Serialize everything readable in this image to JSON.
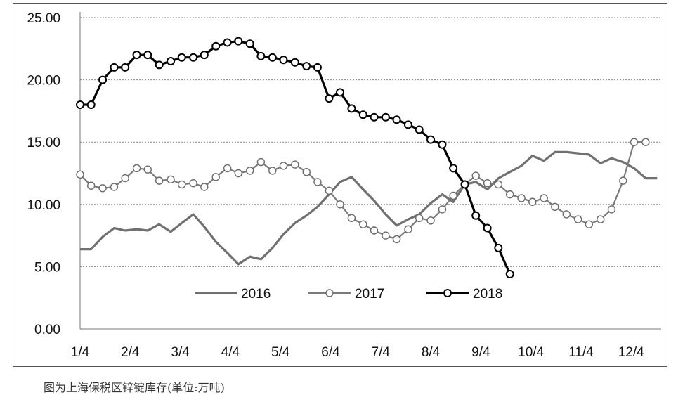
{
  "caption": "图为上海保税区锌锭库存(单位:万吨)",
  "chart_data": {
    "type": "line",
    "title": "",
    "xlabel": "",
    "ylabel": "",
    "ylim": [
      0,
      25
    ],
    "y_ticks": [
      "0.00",
      "5.00",
      "10.00",
      "15.00",
      "20.00",
      "25.00"
    ],
    "x_ticks": [
      "1/4",
      "2/4",
      "3/4",
      "4/4",
      "5/4",
      "6/4",
      "7/4",
      "8/4",
      "9/4",
      "10/4",
      "11/4",
      "12/4"
    ],
    "x_range": [
      0,
      11.6
    ],
    "grid": "horizontal dashed",
    "legend_position": "bottom-center",
    "colors": {
      "2016": "#707070",
      "2017": "#7a7a7a",
      "2018": "#000000"
    },
    "series": [
      {
        "name": "2016",
        "marker": "none",
        "x": [
          0,
          0.22,
          0.45,
          0.68,
          0.9,
          1.13,
          1.35,
          1.58,
          1.81,
          2.03,
          2.26,
          2.48,
          2.71,
          2.94,
          3.16,
          3.39,
          3.61,
          3.84,
          4.06,
          4.29,
          4.52,
          4.74,
          4.97,
          5.19,
          5.42,
          5.65,
          5.87,
          6.1,
          6.32,
          6.55,
          6.77,
          7.0,
          7.23,
          7.45,
          7.68,
          7.9,
          8.13,
          8.35,
          8.58,
          8.81,
          9.03,
          9.26,
          9.48,
          9.71,
          9.94,
          10.16,
          10.39,
          10.61,
          10.84,
          11.06,
          11.29,
          11.52
        ],
        "values": [
          6.4,
          6.4,
          7.4,
          8.1,
          7.9,
          8.0,
          7.9,
          8.4,
          7.8,
          8.5,
          9.2,
          8.2,
          7.0,
          6.1,
          5.2,
          5.8,
          5.6,
          6.5,
          7.6,
          8.5,
          9.1,
          9.8,
          10.8,
          11.8,
          12.2,
          11.2,
          10.3,
          9.2,
          8.3,
          8.8,
          9.2,
          10.1,
          10.8,
          10.2,
          11.6,
          11.8,
          11.2,
          12.1,
          12.6,
          13.1,
          13.9,
          13.5,
          14.2,
          14.2,
          14.1,
          14.0,
          13.3,
          13.7,
          13.4,
          12.9,
          12.1,
          12.1
        ]
      },
      {
        "name": "2017",
        "marker": "hollow-gray",
        "x": [
          0,
          0.22,
          0.45,
          0.68,
          0.9,
          1.13,
          1.35,
          1.58,
          1.81,
          2.03,
          2.26,
          2.48,
          2.71,
          2.94,
          3.16,
          3.39,
          3.61,
          3.84,
          4.06,
          4.29,
          4.52,
          4.74,
          4.97,
          5.19,
          5.42,
          5.65,
          5.87,
          6.1,
          6.32,
          6.55,
          6.77,
          7.0,
          7.23,
          7.45,
          7.68,
          7.9,
          8.13,
          8.35,
          8.58,
          8.81,
          9.03,
          9.26,
          9.48,
          9.71,
          9.94,
          10.16,
          10.39,
          10.61,
          10.84
        ],
        "values": [
          12.4,
          11.5,
          11.3,
          11.4,
          12.1,
          12.9,
          12.8,
          11.9,
          12.0,
          11.6,
          11.7,
          11.4,
          12.2,
          12.9,
          12.5,
          12.7,
          13.4,
          12.7,
          13.1,
          13.2,
          12.6,
          11.8,
          11.1,
          10.0,
          8.9,
          8.4,
          7.9,
          7.5,
          7.2,
          8.0,
          8.9,
          8.7,
          9.6,
          10.7,
          11.6,
          12.3,
          11.7,
          11.6,
          10.8,
          10.5,
          10.2,
          10.5,
          9.8,
          9.2,
          8.8,
          8.4,
          8.8,
          9.6,
          11.9
        ],
        "x_extra": [
          11.06,
          11.29
        ],
        "values_extra": [
          15.0,
          15.0
        ]
      },
      {
        "name": "2018",
        "marker": "hollow-black",
        "x": [
          0,
          0.22,
          0.45,
          0.68,
          0.9,
          1.13,
          1.35,
          1.58,
          1.81,
          2.03,
          2.26,
          2.48,
          2.71,
          2.94,
          3.16,
          3.39,
          3.61,
          3.84,
          4.06,
          4.29,
          4.52,
          4.74,
          4.97,
          5.19,
          5.42,
          5.65,
          5.87,
          6.1,
          6.32,
          6.55,
          6.77,
          7.0,
          7.23,
          7.45,
          7.68,
          7.9,
          8.13,
          8.35,
          8.58
        ],
        "values": [
          18.0,
          18.0,
          20.0,
          21.0,
          21.0,
          22.0,
          22.0,
          21.2,
          21.5,
          21.8,
          21.8,
          22.0,
          22.7,
          23.0,
          23.1,
          22.9,
          21.9,
          21.8,
          21.6,
          21.4,
          21.1,
          21.0,
          18.5,
          19.0,
          17.7,
          17.2,
          17.0,
          17.0,
          16.8,
          16.4,
          16.0,
          15.2,
          14.8,
          12.9,
          11.6,
          9.1,
          8.1,
          6.5,
          4.4
        ]
      }
    ]
  }
}
